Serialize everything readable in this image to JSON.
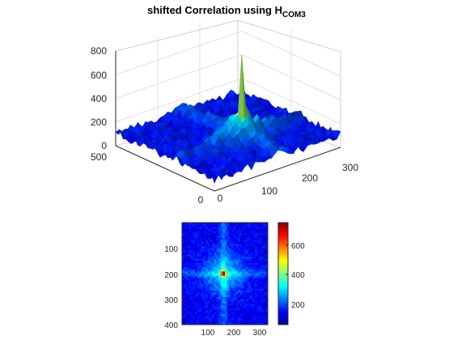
{
  "figure": {
    "title_main": "shifted Correlation using H",
    "title_sub": "COM3"
  },
  "chart_data": [
    {
      "type": "surface",
      "title": "shifted Correlation using HCOM3",
      "colormap": "jet",
      "x_axis": {
        "range": [
          0,
          300
        ],
        "ticks": [
          "100",
          "200",
          "300"
        ],
        "extra_tick": "0"
      },
      "y_axis": {
        "range": [
          0,
          500
        ],
        "ticks": [
          "0",
          "500"
        ]
      },
      "z_axis": {
        "range": [
          0,
          800
        ],
        "ticks": [
          "0",
          "200",
          "400",
          "600",
          "800"
        ]
      },
      "grid": true,
      "peak": {
        "x": 160,
        "y": 200,
        "z": 690
      },
      "baseline_level": 100,
      "broad_peak_level": 220
    },
    {
      "type": "heatmap",
      "colormap": "jet",
      "x_ticks": [
        "100",
        "200",
        "300"
      ],
      "y_ticks": [
        "100",
        "200",
        "300",
        "400"
      ],
      "xlim": [
        0,
        330
      ],
      "ylim": [
        0,
        400
      ],
      "peak": {
        "x": 160,
        "y": 200
      },
      "colorbar": {
        "ticks": [
          "200",
          "400",
          "600"
        ],
        "range": [
          30,
          720
        ]
      }
    }
  ]
}
